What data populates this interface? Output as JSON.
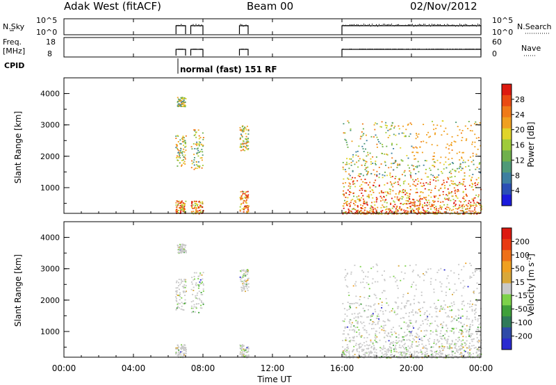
{
  "header": {
    "station": "Adak West (fitACF)",
    "beam": "Beam 00",
    "date": "02/Nov/2012"
  },
  "small_panels": {
    "nsky": {
      "left_label": "N.Sky",
      "left_ticks": [
        "10^5",
        "10^0"
      ],
      "right_ticks": [
        "10^5",
        "10^0"
      ],
      "right_label": "N.Search"
    },
    "freq": {
      "left_label_1": "Freq.",
      "left_label_2": "[MHz]",
      "left_ticks": [
        "18",
        "8"
      ],
      "right_ticks": [
        "60",
        "0"
      ],
      "right_label": "Nave"
    },
    "cpid": {
      "label": "CPID",
      "program": "normal (fast) 151 RF"
    }
  },
  "colors": {
    "power_scale": [
      "#1b1bdc",
      "#2a4fb5",
      "#3d7fa0",
      "#4f9a78",
      "#6fb04c",
      "#9fcb3a",
      "#e0d42a",
      "#f0a020",
      "#f07a18",
      "#ea4a12",
      "#dd1a10"
    ],
    "velocity_scale": [
      "#2a2ad0",
      "#2e4aa8",
      "#2f7a5a",
      "#3fa03a",
      "#7dd24a",
      "#c9c9c9",
      "#d9a83a",
      "#f0a020",
      "#ee7018",
      "#e83a12",
      "#dd1a10"
    ]
  },
  "chart_data": [
    {
      "type": "heatmap",
      "name_shown": "",
      "ylabel": "Slant Range [km]",
      "colorbar_label": "Power [dB]",
      "colorbar_ticks": [
        "28",
        "24",
        "20",
        "16",
        "12",
        "8",
        "4"
      ],
      "y_ticks": [
        "4000",
        "3000",
        "2000",
        "1000"
      ],
      "ylim": [
        180,
        4500
      ],
      "xlim_hours": [
        0,
        24
      ],
      "echo_regions": [
        {
          "t": [
            6.4,
            7.0
          ],
          "r": [
            180,
            600
          ]
        },
        {
          "t": [
            6.4,
            7.0
          ],
          "r": [
            1700,
            2700
          ]
        },
        {
          "t": [
            6.5,
            7.0
          ],
          "r": [
            3600,
            3900
          ]
        },
        {
          "t": [
            7.3,
            8.0
          ],
          "r": [
            1600,
            2900
          ]
        },
        {
          "t": [
            7.3,
            8.0
          ],
          "r": [
            180,
            600
          ]
        },
        {
          "t": [
            10.1,
            10.6
          ],
          "r": [
            180,
            900
          ]
        },
        {
          "t": [
            10.1,
            10.6
          ],
          "r": [
            2200,
            3000
          ]
        },
        {
          "t": [
            16.0,
            24.0
          ],
          "r": [
            180,
            3200
          ]
        }
      ]
    },
    {
      "type": "heatmap",
      "ylabel": "Slant Range [km]",
      "colorbar_label": "Velocity [m s-1]",
      "colorbar_label_text": "Velocity [m s",
      "colorbar_label_sup": "-1",
      "colorbar_label_end": "]",
      "colorbar_ticks": [
        "200",
        "100",
        "50",
        "15",
        "-15",
        "-50",
        "-100",
        "-200"
      ],
      "y_ticks": [
        "4000",
        "3000",
        "2000",
        "1000"
      ],
      "ylim": [
        180,
        4500
      ],
      "xlim_hours": [
        0,
        24
      ],
      "echo_regions": [
        {
          "t": [
            6.4,
            7.0
          ],
          "r": [
            180,
            600
          ]
        },
        {
          "t": [
            6.4,
            7.0
          ],
          "r": [
            1700,
            2700
          ]
        },
        {
          "t": [
            6.5,
            7.0
          ],
          "r": [
            3500,
            3800
          ]
        },
        {
          "t": [
            7.3,
            8.0
          ],
          "r": [
            1600,
            2900
          ]
        },
        {
          "t": [
            10.1,
            10.6
          ],
          "r": [
            180,
            600
          ]
        },
        {
          "t": [
            10.1,
            10.6
          ],
          "r": [
            2300,
            3000
          ]
        },
        {
          "t": [
            16.0,
            24.0
          ],
          "r": [
            180,
            3200
          ]
        }
      ]
    }
  ],
  "x_axis": {
    "ticks": [
      "00:00",
      "04:00",
      "08:00",
      "12:00",
      "16:00",
      "20:00",
      "00:00"
    ],
    "label": "Time UT"
  },
  "operating_intervals_hours": [
    [
      6.45,
      7.0
    ],
    [
      7.3,
      8.0
    ],
    [
      10.1,
      10.6
    ],
    [
      16.0,
      24.0
    ]
  ]
}
